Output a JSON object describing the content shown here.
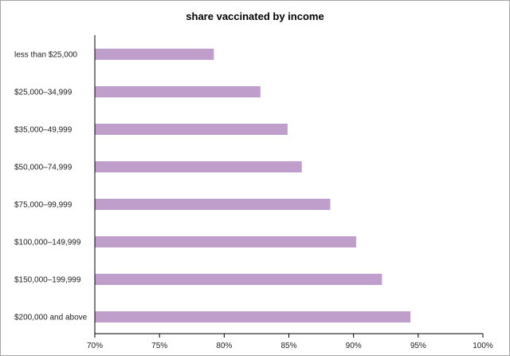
{
  "chart_data": {
    "type": "bar",
    "orientation": "horizontal",
    "title": "share vaccinated by income",
    "xlabel": "",
    "ylabel": "",
    "categories": [
      "less than $25,000",
      "$25,000–34,999",
      "$35,000–49,999",
      "$50,000–74,999",
      "$75,000–99,999",
      "$100,000–149,999",
      "$150,000–199,999",
      "$200,000 and above"
    ],
    "values": [
      79.2,
      82.8,
      84.9,
      86.0,
      88.2,
      90.2,
      92.2,
      94.4
    ],
    "xlim": [
      70,
      100
    ],
    "xticks": [
      70,
      75,
      80,
      85,
      90,
      95,
      100
    ],
    "xtick_labels": [
      "70%",
      "75%",
      "80%",
      "85%",
      "90%",
      "95%",
      "100%"
    ],
    "grid": false,
    "bar_color": "#bf9ecb"
  }
}
